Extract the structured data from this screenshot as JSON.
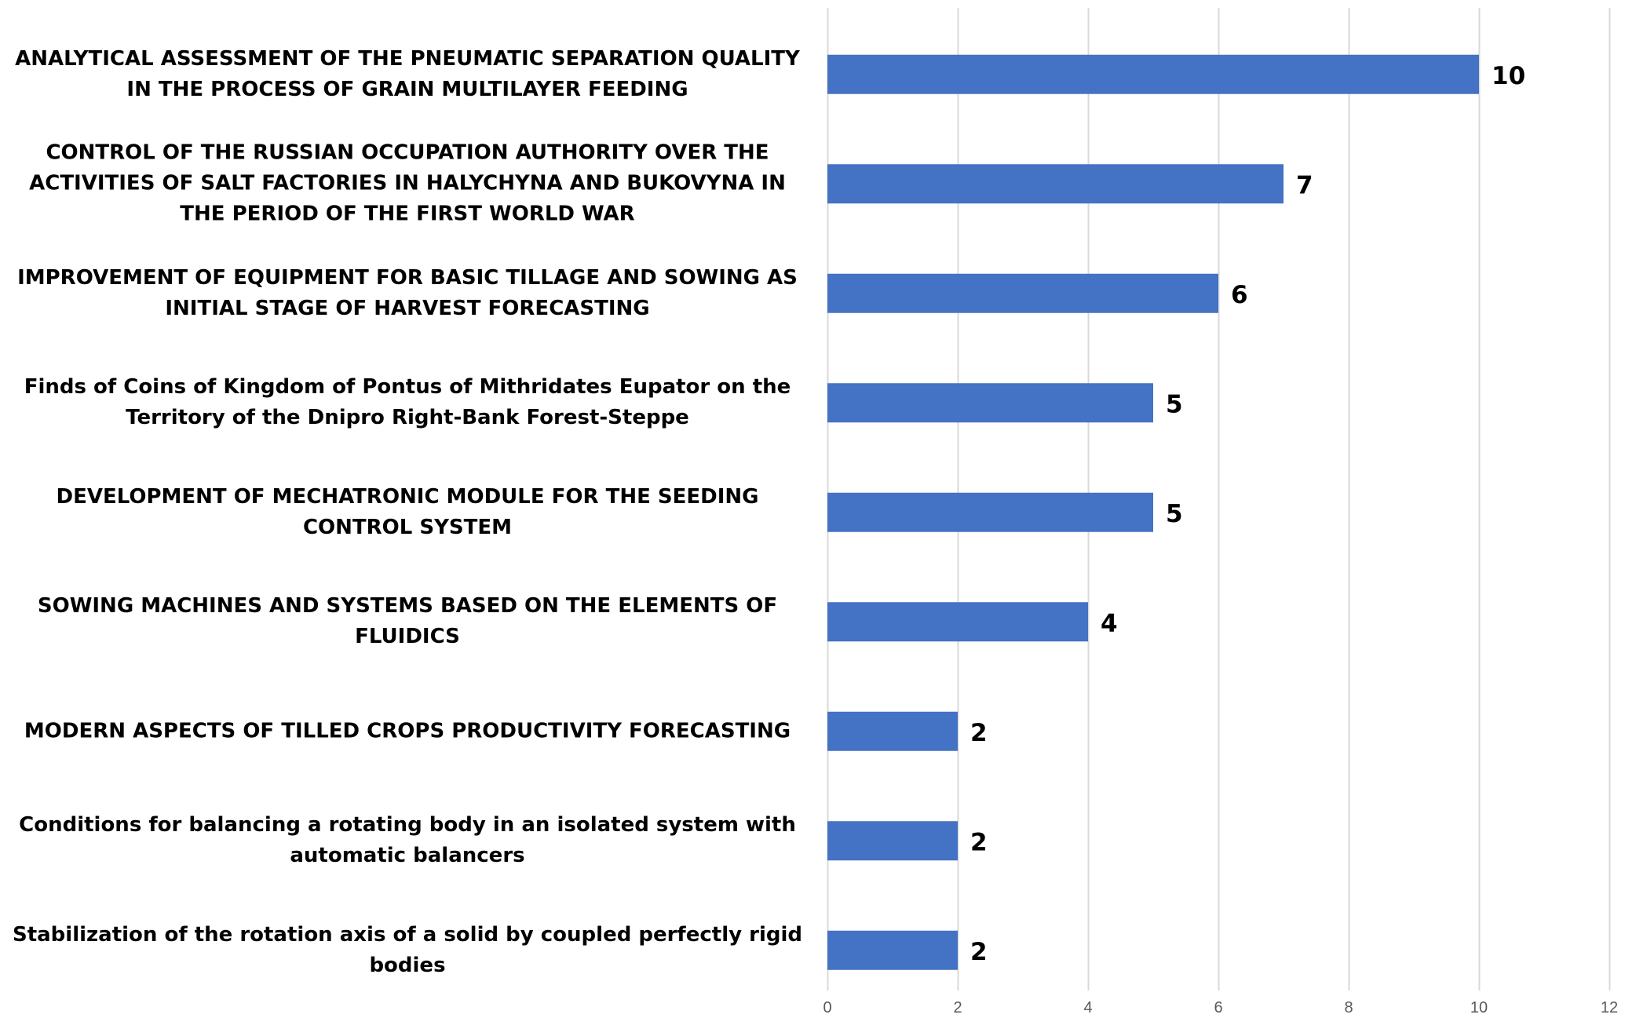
{
  "chart_data": {
    "type": "bar",
    "orientation": "horizontal",
    "categories": [
      "ANALYTICAL ASSESSMENT OF THE PNEUMATIC SEPARATION QUALITY IN THE PROCESS OF GRAIN MULTILAYER FEEDING",
      "CONTROL OF THE RUSSIAN OCCUPATION AUTHORITY OVER THE ACTIVITIES OF SALT FACTORIES IN HALYCHYNA AND BUKOVYNA IN THE PERIOD OF THE FIRST WORLD WAR",
      "IMPROVEMENT OF EQUIPMENT FOR BASIC TILLAGE AND SOWING AS INITIAL STAGE OF HARVEST FORECASTING",
      "Finds of Coins of Kingdom of Pontus of Mithridates Eupator on the Territory of the Dnipro Right-Bank Forest-Steppe",
      "DEVELOPMENT OF MECHATRONIC MODULE FOR THE SEEDING CONTROL SYSTEM",
      "SOWING MACHINES AND SYSTEMS BASED ON THE ELEMENTS OF FLUIDICS",
      "MODERN ASPECTS OF TILLED CROPS PRODUCTIVITY FORECASTING",
      "Conditions for balancing a rotating body in an isolated system with automatic balancers",
      "Stabilization of the rotation axis of a solid by coupled perfectly rigid bodies"
    ],
    "values": [
      10,
      7,
      6,
      5,
      5,
      4,
      2,
      2,
      2
    ],
    "data_labels": [
      "10",
      "7",
      "6",
      "5",
      "5",
      "4",
      "2",
      "2",
      "2"
    ],
    "xlim": [
      0,
      12
    ],
    "x_ticks": [
      0,
      2,
      4,
      6,
      8,
      10,
      12
    ],
    "x_tick_labels": [
      "0",
      "2",
      "4",
      "6",
      "8",
      "10",
      "12"
    ],
    "grid": "vertical",
    "legend": "none",
    "bar_color": "#4472C4",
    "gridline_color": "#D9D9D9",
    "tick_label_color": "#595959",
    "title": "",
    "xlabel": "",
    "ylabel": ""
  }
}
